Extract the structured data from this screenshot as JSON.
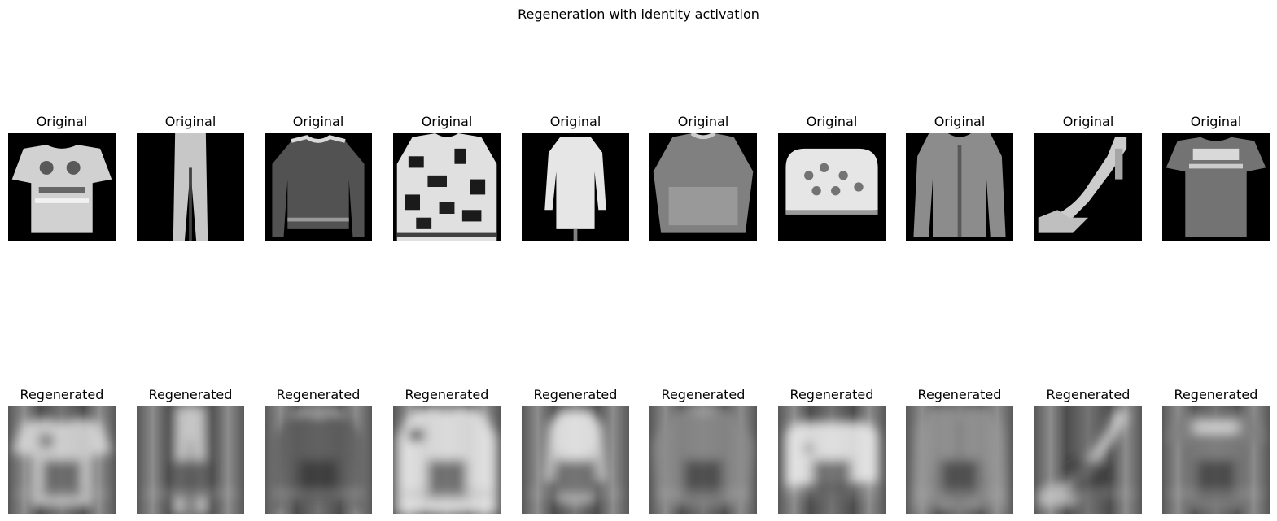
{
  "figure": {
    "title": "Regeneration with identity activation",
    "rows": [
      {
        "label": "Original",
        "kind": "original",
        "items": [
          "tshirt",
          "trouser",
          "pullover",
          "pullover-pattern",
          "dress",
          "shirt",
          "bag",
          "coat",
          "sandal",
          "tshirt-dark"
        ]
      },
      {
        "label": "Regenerated",
        "kind": "regenerated",
        "items": [
          "tshirt",
          "trouser",
          "pullover",
          "pullover-pattern",
          "dress",
          "shirt",
          "bag",
          "coat",
          "sandal",
          "tshirt-dark"
        ]
      }
    ]
  }
}
